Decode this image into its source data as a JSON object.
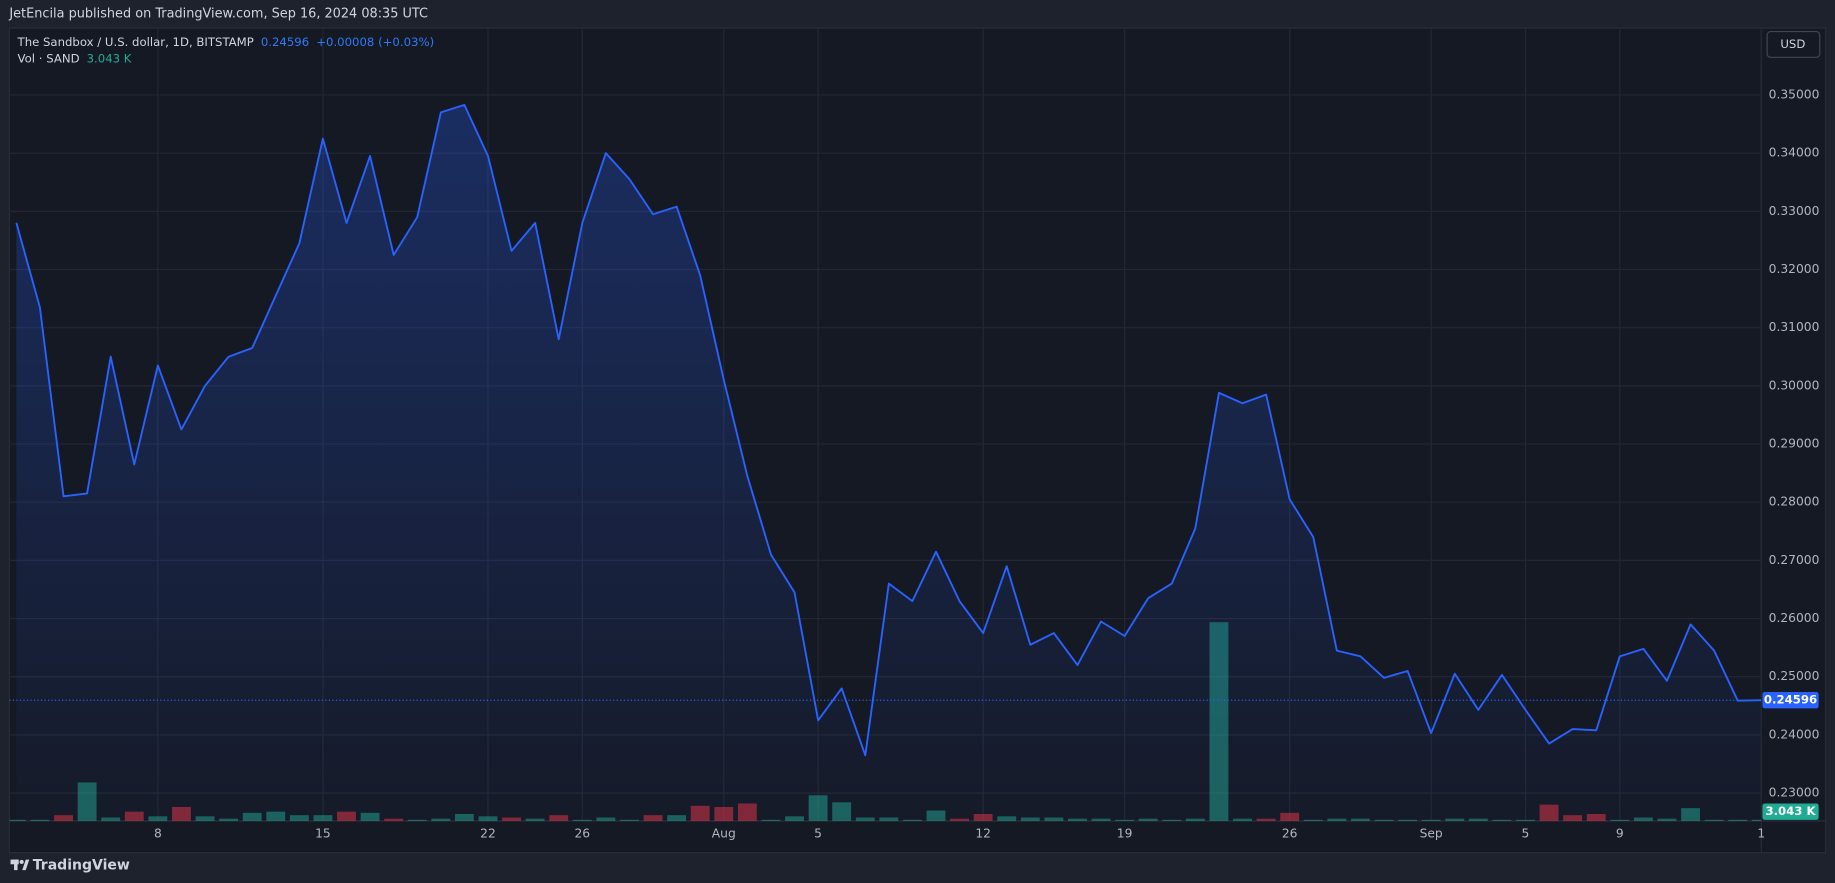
{
  "header": "JetEncila published on TradingView.com, Sep 16, 2024 08:35 UTC",
  "footer": "TradingView",
  "chart_data": {
    "type": "area",
    "title": "The Sandbox / U.S. dollar, 1D, BITSTAMP",
    "change_label": "+0.00008 (+0.03%)",
    "currency": "USD",
    "categories": [
      null,
      null,
      null,
      null,
      null,
      null,
      "8",
      null,
      null,
      null,
      null,
      null,
      null,
      "15",
      null,
      null,
      null,
      null,
      null,
      null,
      "22",
      null,
      null,
      null,
      "26",
      null,
      null,
      null,
      null,
      null,
      "Aug",
      null,
      null,
      null,
      "5",
      null,
      null,
      null,
      null,
      null,
      null,
      "12",
      null,
      null,
      null,
      null,
      null,
      "19",
      null,
      null,
      null,
      null,
      null,
      null,
      "26",
      null,
      null,
      null,
      null,
      null,
      "Sep",
      null,
      null,
      null,
      "5",
      null,
      null,
      null,
      "9",
      null,
      null,
      null,
      null,
      null,
      "1"
    ],
    "series": [
      {
        "color": "#2962ff",
        "values": [
          0.328,
          0.3135,
          0.281,
          0.2815,
          0.305,
          0.2865,
          0.3035,
          0.2925,
          0.3,
          0.305,
          0.3065,
          0.3155,
          0.3245,
          0.3425,
          0.328,
          0.3395,
          0.3225,
          0.329,
          0.347,
          0.3483,
          0.3395,
          0.3232,
          0.328,
          0.308,
          0.328,
          0.34,
          0.3355,
          0.3295,
          0.3308,
          0.319,
          0.301,
          0.2845,
          0.271,
          0.2645,
          0.2425,
          0.248,
          0.2365,
          0.266,
          0.263,
          0.2715,
          0.263,
          0.2575,
          0.269,
          0.2555,
          0.2575,
          0.252,
          0.2595,
          0.257,
          0.2635,
          0.266,
          0.2755,
          0.2988,
          0.297,
          0.2985,
          0.2805,
          0.274,
          0.2545,
          0.2535,
          0.2498,
          0.251,
          0.2403,
          0.2505,
          0.2443,
          0.2503,
          0.2443,
          0.2385,
          0.241,
          0.2408,
          0.2535,
          0.2548,
          0.2493,
          0.259,
          0.2545,
          0.24588,
          0.24596
        ]
      }
    ],
    "volume": {
      "name": "Vol · SAND",
      "values": [
        3,
        3,
        15,
        99,
        9,
        24,
        12,
        36,
        12,
        6,
        21,
        24,
        15,
        15,
        24,
        21,
        6,
        3,
        6,
        18,
        12,
        9,
        6,
        15,
        3,
        9,
        3,
        15,
        15,
        39,
        36,
        45,
        3,
        12,
        66,
        48,
        9,
        9,
        3,
        27,
        6,
        18,
        12,
        9,
        9,
        6,
        6,
        3,
        6,
        3,
        6,
        510,
        6,
        6,
        21,
        3,
        6,
        6,
        3,
        3,
        3,
        6,
        6,
        3,
        3,
        42,
        15,
        18,
        3,
        9,
        6,
        33,
        3,
        3,
        3.043
      ],
      "value_labels": [
        null,
        null,
        null,
        null,
        null,
        null,
        null,
        null,
        null,
        null,
        null,
        null,
        null,
        null,
        null,
        null,
        null,
        null,
        null,
        null,
        null,
        null,
        null,
        null,
        null,
        null,
        null,
        null,
        null,
        null,
        null,
        null,
        null,
        null,
        null,
        null,
        null,
        null,
        null,
        null,
        null,
        null,
        null,
        null,
        null,
        null,
        null,
        null,
        null,
        null,
        null,
        null,
        null,
        null,
        null,
        null,
        null,
        null,
        null,
        null,
        null,
        null,
        null,
        null,
        null,
        null,
        null,
        null,
        null,
        null,
        null,
        null,
        null,
        null,
        "3.043 K"
      ],
      "colors": [
        "#22ab94",
        "#22ab94",
        "#f23645",
        "#22ab94",
        "#22ab94",
        "#f23645",
        "#22ab94",
        "#f23645",
        "#22ab94",
        "#22ab94",
        "#22ab94",
        "#22ab94",
        "#22ab94",
        "#22ab94",
        "#f23645",
        "#22ab94",
        "#f23645",
        "#22ab94",
        "#22ab94",
        "#22ab94",
        "#22ab94",
        "#f23645",
        "#22ab94",
        "#f23645",
        "#22ab94",
        "#22ab94",
        "#22ab94",
        "#f23645",
        "#22ab94",
        "#f23645",
        "#f23645",
        "#f23645",
        "#22ab94",
        "#22ab94",
        "#22ab94",
        "#22ab94",
        "#22ab94",
        "#22ab94",
        "#22ab94",
        "#22ab94",
        "#f23645",
        "#f23645",
        "#22ab94",
        "#22ab94",
        "#22ab94",
        "#22ab94",
        "#22ab94",
        "#22ab94",
        "#22ab94",
        "#22ab94",
        "#22ab94",
        "#22ab94",
        "#22ab94",
        "#f23645",
        "#f23645",
        "#22ab94",
        "#22ab94",
        "#22ab94",
        "#22ab94",
        "#22ab94",
        "#22ab94",
        "#22ab94",
        "#22ab94",
        "#22ab94",
        "#22ab94",
        "#f23645",
        "#f23645",
        "#f23645",
        "#22ab94",
        "#22ab94",
        "#22ab94",
        "#22ab94",
        "#22ab94",
        "#22ab94",
        "#22ab94"
      ],
      "ylim": [
        0,
        600
      ]
    },
    "ylim": [
      0.2252,
      0.3615
    ],
    "yticks": [
      {
        "value": 0.23,
        "label": "0.23000"
      },
      {
        "value": 0.24,
        "label": "0.24000"
      },
      {
        "value": 0.25,
        "label": "0.25000"
      },
      {
        "value": 0.26,
        "label": "0.26000"
      },
      {
        "value": 0.27,
        "label": "0.27000"
      },
      {
        "value": 0.28,
        "label": "0.28000"
      },
      {
        "value": 0.29,
        "label": "0.29000"
      },
      {
        "value": 0.3,
        "label": "0.30000"
      },
      {
        "value": 0.31,
        "label": "0.31000"
      },
      {
        "value": 0.32,
        "label": "0.32000"
      },
      {
        "value": 0.33,
        "label": "0.33000"
      },
      {
        "value": 0.34,
        "label": "0.34000"
      },
      {
        "value": 0.35,
        "label": "0.35000"
      }
    ],
    "grid": true
  }
}
